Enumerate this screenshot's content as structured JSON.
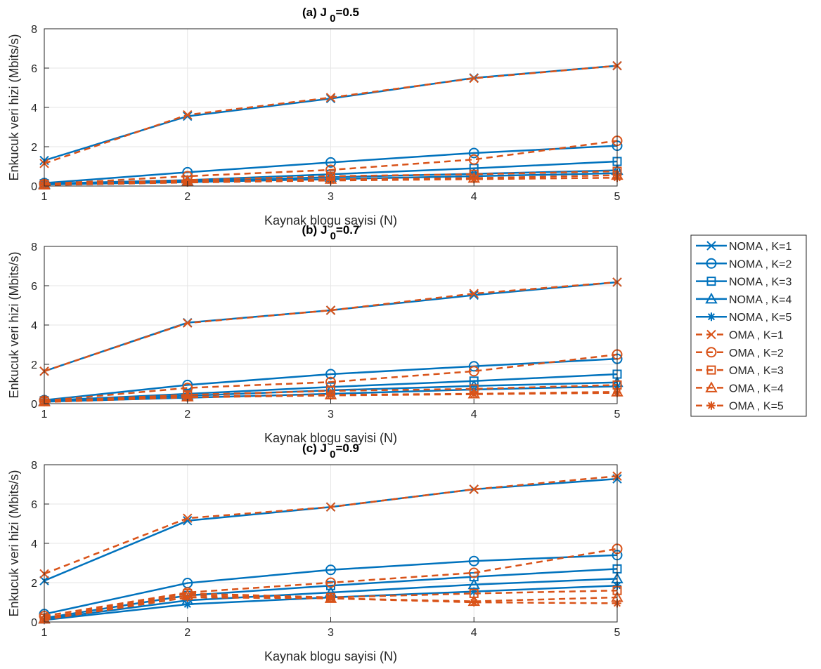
{
  "colors": {
    "noma": "#0072BD",
    "oma": "#D95319",
    "grid": "#e6e6e6",
    "axis": "#262626"
  },
  "legend": {
    "placement": "right",
    "entries": [
      {
        "label": "NOMA , K=1",
        "series": "noma",
        "marker": "x"
      },
      {
        "label": "NOMA , K=2",
        "series": "noma",
        "marker": "o"
      },
      {
        "label": "NOMA , K=3",
        "series": "noma",
        "marker": "s"
      },
      {
        "label": "NOMA , K=4",
        "series": "noma",
        "marker": "^"
      },
      {
        "label": "NOMA , K=5",
        "series": "noma",
        "marker": "*"
      },
      {
        "label": "OMA , K=1",
        "series": "oma",
        "marker": "x"
      },
      {
        "label": "OMA , K=2",
        "series": "oma",
        "marker": "o"
      },
      {
        "label": "OMA , K=3",
        "series": "oma",
        "marker": "s"
      },
      {
        "label": "OMA , K=4",
        "series": "oma",
        "marker": "^"
      },
      {
        "label": "OMA , K=5",
        "series": "oma",
        "marker": "*"
      }
    ]
  },
  "chart_data": [
    {
      "type": "line",
      "title_main": "(a)  J",
      "title_sub": "0",
      "title_tail": "=0.5",
      "xlabel": "Kaynak blogu sayisi (N)",
      "ylabel": "Enkucuk veri hizi (Mbits/s)",
      "x": [
        1,
        2,
        3,
        4,
        5
      ],
      "xlim": [
        1,
        5
      ],
      "ylim": [
        0,
        8
      ],
      "yticks": [
        0,
        2,
        4,
        6,
        8
      ],
      "grid": true,
      "series": [
        {
          "name": "NOMA , K=1",
          "values": [
            1.3,
            3.55,
            4.45,
            5.5,
            6.12
          ]
        },
        {
          "name": "NOMA , K=2",
          "values": [
            0.15,
            0.7,
            1.2,
            1.68,
            2.05
          ]
        },
        {
          "name": "NOMA , K=3",
          "values": [
            0.12,
            0.3,
            0.6,
            0.9,
            1.25
          ]
        },
        {
          "name": "NOMA , K=4",
          "values": [
            0.1,
            0.25,
            0.45,
            0.62,
            0.8
          ]
        },
        {
          "name": "NOMA , K=5",
          "values": [
            0.08,
            0.2,
            0.35,
            0.5,
            0.65
          ]
        },
        {
          "name": "OMA , K=1",
          "values": [
            1.15,
            3.62,
            4.5,
            5.48,
            6.12
          ]
        },
        {
          "name": "OMA , K=2",
          "values": [
            0.1,
            0.5,
            0.82,
            1.35,
            2.3
          ]
        },
        {
          "name": "OMA , K=3",
          "values": [
            0.08,
            0.3,
            0.5,
            0.6,
            0.75
          ]
        },
        {
          "name": "OMA , K=4",
          "values": [
            0.06,
            0.22,
            0.35,
            0.4,
            0.55
          ]
        },
        {
          "name": "OMA , K=5",
          "values": [
            0.05,
            0.18,
            0.28,
            0.35,
            0.42
          ]
        }
      ]
    },
    {
      "type": "line",
      "title_main": "(b)  J",
      "title_sub": "0",
      "title_tail": "=0.7",
      "xlabel": "Kaynak blogu sayisi (N)",
      "ylabel": "Enkucuk veri hizi (Mbits/s)",
      "x": [
        1,
        2,
        3,
        4,
        5
      ],
      "xlim": [
        1,
        5
      ],
      "ylim": [
        0,
        8
      ],
      "yticks": [
        0,
        2,
        4,
        6,
        8
      ],
      "grid": true,
      "series": [
        {
          "name": "NOMA , K=1",
          "values": [
            1.65,
            4.12,
            4.75,
            5.52,
            6.18
          ]
        },
        {
          "name": "NOMA , K=2",
          "values": [
            0.18,
            0.95,
            1.5,
            1.9,
            2.28
          ]
        },
        {
          "name": "NOMA , K=3",
          "values": [
            0.15,
            0.5,
            0.85,
            1.15,
            1.5
          ]
        },
        {
          "name": "NOMA , K=4",
          "values": [
            0.12,
            0.4,
            0.68,
            0.9,
            1.08
          ]
        },
        {
          "name": "NOMA , K=5",
          "values": [
            0.1,
            0.3,
            0.5,
            0.72,
            0.88
          ]
        },
        {
          "name": "OMA , K=1",
          "values": [
            1.65,
            4.1,
            4.75,
            5.6,
            6.18
          ]
        },
        {
          "name": "OMA , K=2",
          "values": [
            0.15,
            0.8,
            1.1,
            1.65,
            2.5
          ]
        },
        {
          "name": "OMA , K=3",
          "values": [
            0.12,
            0.45,
            0.65,
            0.75,
            0.95
          ]
        },
        {
          "name": "OMA , K=4",
          "values": [
            0.1,
            0.35,
            0.45,
            0.5,
            0.6
          ]
        },
        {
          "name": "OMA , K=5",
          "values": [
            0.08,
            0.32,
            0.42,
            0.48,
            0.55
          ]
        }
      ]
    },
    {
      "type": "line",
      "title_main": "(c)  J",
      "title_sub": "0",
      "title_tail": "=0.9",
      "xlabel": "Kaynak blogu sayisi (N)",
      "ylabel": "Enkucuk veri hizi (Mbits/s)",
      "x": [
        1,
        2,
        3,
        4,
        5
      ],
      "xlim": [
        1,
        5
      ],
      "ylim": [
        0,
        8
      ],
      "yticks": [
        0,
        2,
        4,
        6,
        8
      ],
      "grid": true,
      "series": [
        {
          "name": "NOMA , K=1",
          "values": [
            2.1,
            5.15,
            5.85,
            6.75,
            7.28
          ]
        },
        {
          "name": "NOMA , K=2",
          "values": [
            0.4,
            1.98,
            2.65,
            3.1,
            3.4
          ]
        },
        {
          "name": "NOMA , K=3",
          "values": [
            0.2,
            1.35,
            1.85,
            2.3,
            2.7
          ]
        },
        {
          "name": "NOMA , K=4",
          "values": [
            0.15,
            1.1,
            1.5,
            1.9,
            2.2
          ]
        },
        {
          "name": "NOMA , K=5",
          "values": [
            0.1,
            0.9,
            1.25,
            1.55,
            1.85
          ]
        },
        {
          "name": "OMA , K=1",
          "values": [
            2.45,
            5.28,
            5.85,
            6.75,
            7.42
          ]
        },
        {
          "name": "OMA , K=2",
          "values": [
            0.3,
            1.5,
            2.0,
            2.5,
            3.72
          ]
        },
        {
          "name": "OMA , K=3",
          "values": [
            0.2,
            1.45,
            1.25,
            1.45,
            1.6
          ]
        },
        {
          "name": "OMA , K=4",
          "values": [
            0.15,
            1.35,
            1.2,
            1.05,
            1.25
          ]
        },
        {
          "name": "OMA , K=5",
          "values": [
            0.12,
            1.25,
            1.2,
            1.0,
            0.95
          ]
        }
      ]
    }
  ]
}
